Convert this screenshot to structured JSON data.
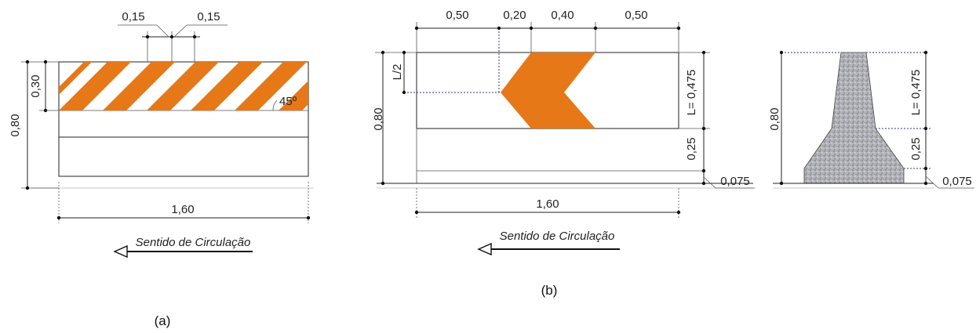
{
  "figure_a": {
    "caption": "(a)",
    "dims": {
      "top_left_width": "0,15",
      "top_right_width": "0,15",
      "stripe_height": "0,30",
      "total_height": "0,80",
      "total_length": "1,60",
      "angle": "45º"
    },
    "direction_label": "Sentido de Circulação",
    "stripe_color": "#e67817"
  },
  "figure_b": {
    "caption": "(b)",
    "dims": {
      "top_1": "0,50",
      "top_2": "0,20",
      "top_3": "0,40",
      "top_4": "0,50",
      "half_l": "L/2",
      "total_height": "0,80",
      "total_length": "1,60",
      "l_value": "L= 0,475",
      "middle": "0,25",
      "base": "0,075"
    },
    "direction_label": "Sentido de Circulação",
    "chevron_color": "#e67817"
  },
  "section_view": {
    "dims": {
      "total_height": "0,80",
      "l_value": "L= 0,475",
      "middle": "0,25",
      "base": "0,075"
    },
    "concrete_color": "#a9a9b0"
  }
}
